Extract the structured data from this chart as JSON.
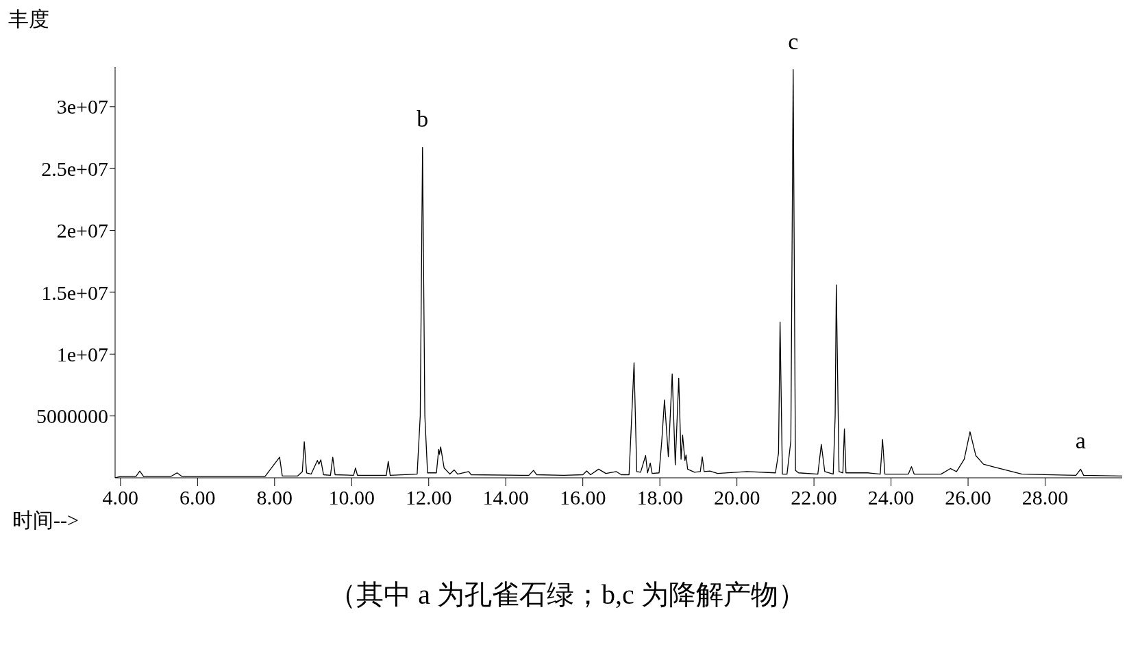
{
  "chart_data": {
    "type": "line",
    "ylabel": "丰度",
    "xlabel": "时间-->",
    "color": "#000000",
    "marker": "none",
    "x": [
      3.86,
      4.0,
      4.4,
      4.5,
      4.6,
      5.3,
      5.47,
      5.6,
      7.75,
      8.13,
      8.2,
      8.6,
      8.72,
      8.77,
      8.83,
      8.95,
      9.11,
      9.15,
      9.2,
      9.27,
      9.45,
      9.51,
      9.57,
      10.05,
      10.1,
      10.15,
      10.9,
      10.95,
      11.0,
      11.7,
      11.78,
      11.84,
      11.9,
      11.97,
      12.2,
      12.26,
      12.28,
      12.31,
      12.4,
      12.55,
      12.66,
      12.75,
      13.04,
      13.1,
      14.6,
      14.72,
      14.8,
      15.5,
      16.0,
      16.1,
      16.2,
      16.41,
      16.6,
      16.87,
      17.0,
      17.2,
      17.27,
      17.33,
      17.4,
      17.5,
      17.63,
      17.68,
      17.75,
      17.8,
      17.98,
      18.05,
      18.12,
      18.22,
      18.32,
      18.4,
      18.49,
      18.55,
      18.59,
      18.65,
      18.68,
      18.72,
      18.9,
      19.05,
      19.1,
      19.15,
      19.3,
      19.5,
      20.26,
      21.0,
      21.08,
      21.12,
      21.18,
      21.3,
      21.4,
      21.46,
      21.52,
      21.6,
      22.1,
      22.19,
      22.28,
      22.5,
      22.55,
      22.58,
      22.65,
      22.75,
      22.79,
      22.83,
      23.4,
      23.72,
      23.78,
      23.84,
      24.45,
      24.53,
      24.6,
      25.3,
      25.54,
      25.7,
      25.9,
      26.05,
      26.2,
      26.4,
      26.7,
      27.4,
      28.8,
      28.92,
      29.0,
      30.0
    ],
    "values": [
      0,
      100000,
      100000,
      540000,
      100000,
      100000,
      400000,
      100000,
      100000,
      1670000,
      150000,
      150000,
      500000,
      2920000,
      400000,
      300000,
      1400000,
      1100000,
      1450000,
      250000,
      200000,
      1670000,
      250000,
      200000,
      800000,
      200000,
      200000,
      1340000,
      200000,
      300000,
      5000000,
      26700000,
      5000000,
      400000,
      400000,
      2300000,
      1900000,
      2500000,
      800000,
      300000,
      640000,
      300000,
      500000,
      250000,
      200000,
      600000,
      250000,
      200000,
      250000,
      550000,
      250000,
      700000,
      350000,
      500000,
      250000,
      250000,
      5000000,
      9300000,
      500000,
      450000,
      1800000,
      400000,
      1200000,
      350000,
      400000,
      3000000,
      6300000,
      1700000,
      8400000,
      1050000,
      8060000,
      1500000,
      3460000,
      1400000,
      1850000,
      700000,
      450000,
      500000,
      1700000,
      500000,
      550000,
      350000,
      500000,
      400000,
      2000000,
      12600000,
      300000,
      300000,
      3000000,
      33000000,
      600000,
      400000,
      300000,
      2700000,
      500000,
      300000,
      5000000,
      15600000,
      500000,
      400000,
      3950000,
      400000,
      400000,
      300000,
      3100000,
      300000,
      300000,
      900000,
      300000,
      300000,
      750000,
      500000,
      1500000,
      3720000,
      1800000,
      1100000,
      850000,
      300000,
      200000,
      700000,
      200000,
      150000
    ],
    "xlim": [
      3.86,
      30
    ],
    "ylim": [
      0,
      33200000
    ],
    "xticks": [
      {
        "value": 4,
        "label": "4.00"
      },
      {
        "value": 6,
        "label": "6.00"
      },
      {
        "value": 8,
        "label": "8.00"
      },
      {
        "value": 10,
        "label": "10.00"
      },
      {
        "value": 12,
        "label": "12.00"
      },
      {
        "value": 14,
        "label": "14.00"
      },
      {
        "value": 16,
        "label": "16.00"
      },
      {
        "value": 18,
        "label": "18.00"
      },
      {
        "value": 20,
        "label": "20.00"
      },
      {
        "value": 22,
        "label": "22.00"
      },
      {
        "value": 24,
        "label": "24.00"
      },
      {
        "value": 26,
        "label": "26.00"
      },
      {
        "value": 28,
        "label": "28.00"
      }
    ],
    "yticks": [
      5000000,
      {
        "value": 10000000,
        "label": "1e+07"
      },
      {
        "value": 15000000,
        "label": "1.5e+07"
      },
      {
        "value": 20000000,
        "label": "2e+07"
      },
      {
        "value": 25000000,
        "label": "2.5e+07"
      },
      {
        "value": 30000000,
        "label": "3e+07"
      }
    ],
    "annotations": [
      {
        "text": "b",
        "x": 11.84,
        "y": 26700000
      },
      {
        "text": "c",
        "x": 21.46,
        "y": 33000000
      },
      {
        "text": "a",
        "x": 28.92,
        "y": 700000
      },
      "（其中 a 为孔雀石绿；b,c 为降解产物）"
    ]
  }
}
